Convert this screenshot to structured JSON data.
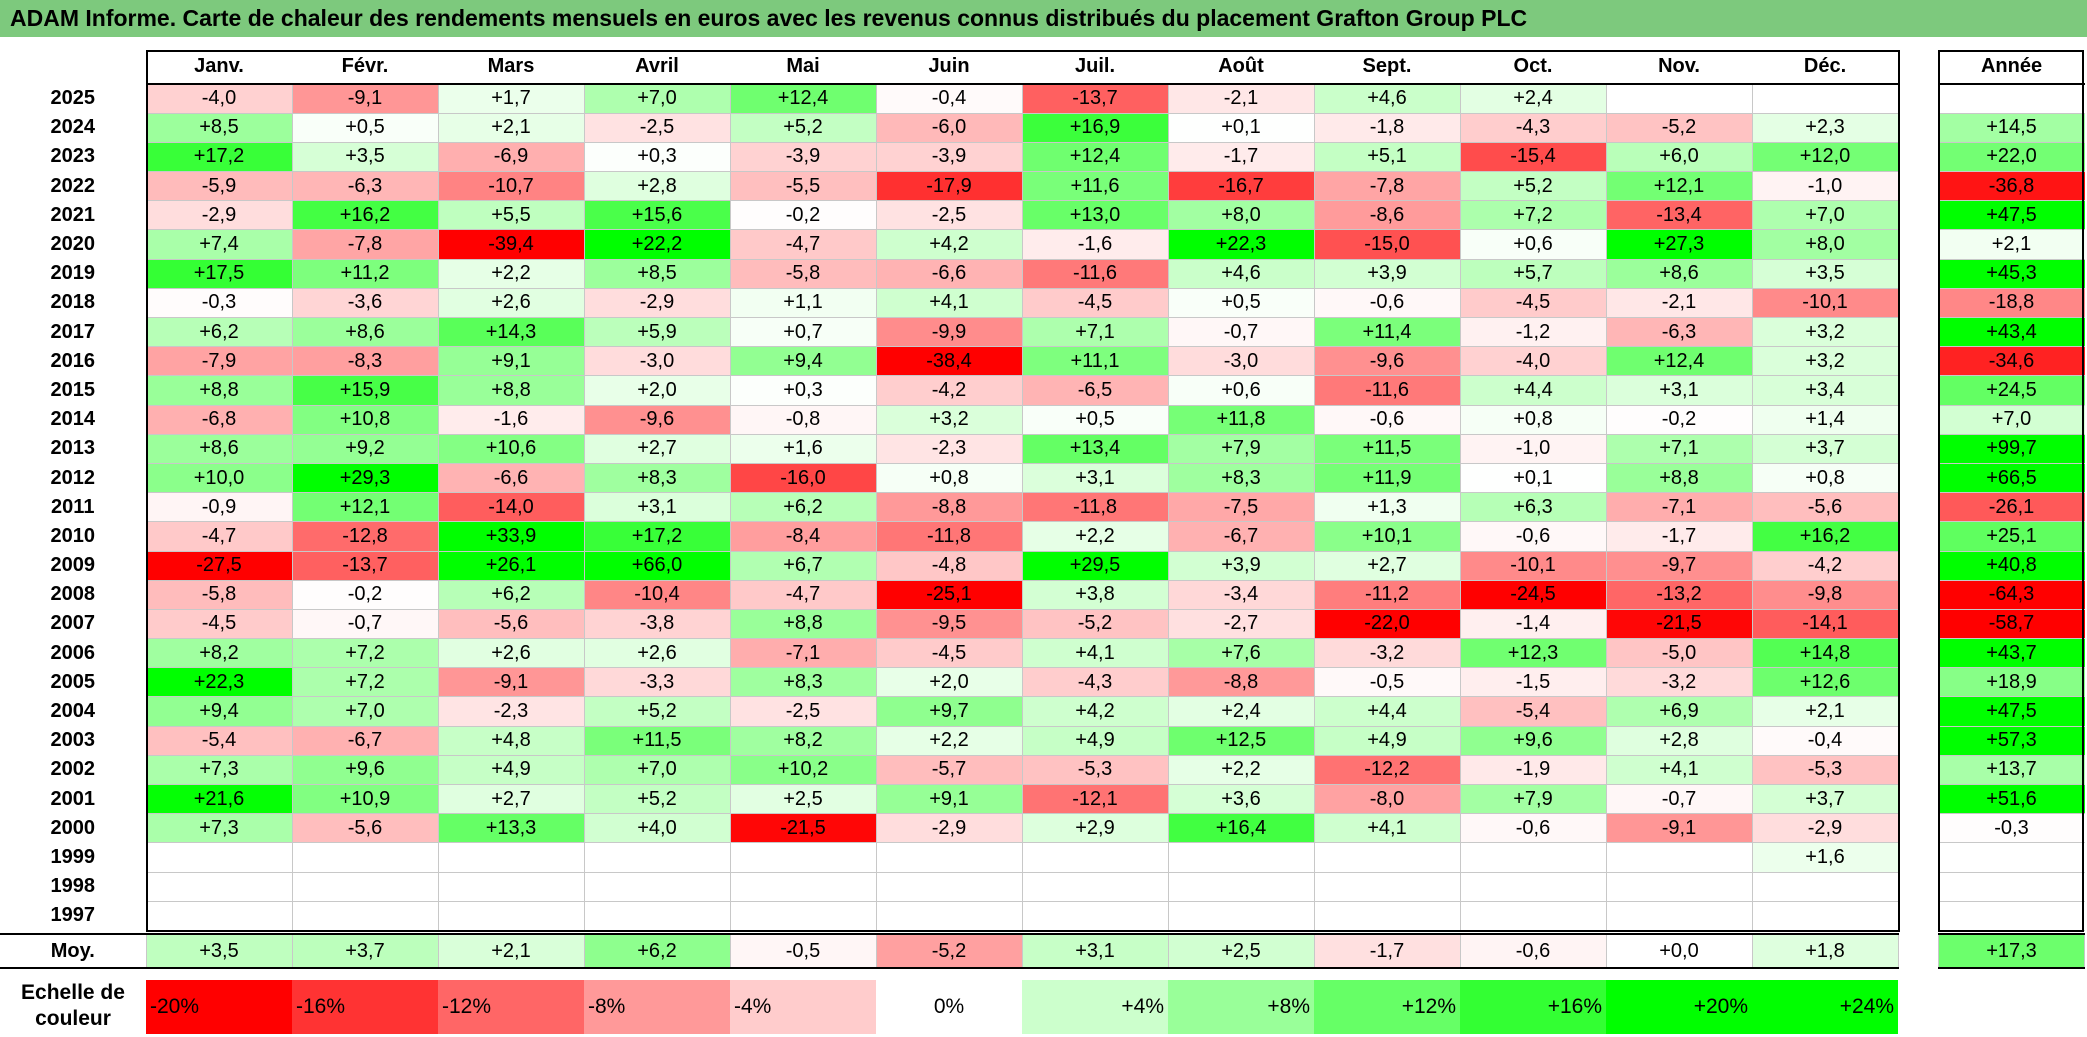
{
  "title": "ADAM Informe. Carte de chaleur des rendements mensuels en euros avec les revenus connus distribués du placement Grafton Group PLC",
  "chart_data": {
    "type": "heatmap",
    "title": "ADAM Informe. Carte de chaleur des rendements mensuels en euros avec les revenus connus distribués du placement Grafton Group PLC",
    "columns": [
      "Janv.",
      "Févr.",
      "Mars",
      "Avril",
      "Mai",
      "Juin",
      "Juil.",
      "Août",
      "Sept.",
      "Oct.",
      "Nov.",
      "Déc."
    ],
    "year_column_label": "Année",
    "rows": [
      {
        "year": "2025",
        "values": [
          "-4,0",
          "-9,1",
          "+1,7",
          "+7,0",
          "+12,4",
          "-0,4",
          "-13,7",
          "-2,1",
          "+4,6",
          "+2,4",
          "",
          ""
        ],
        "annual": ""
      },
      {
        "year": "2024",
        "values": [
          "+8,5",
          "+0,5",
          "+2,1",
          "-2,5",
          "+5,2",
          "-6,0",
          "+16,9",
          "+0,1",
          "-1,8",
          "-4,3",
          "-5,2",
          "+2,3"
        ],
        "annual": "+14,5"
      },
      {
        "year": "2023",
        "values": [
          "+17,2",
          "+3,5",
          "-6,9",
          "+0,3",
          "-3,9",
          "-3,9",
          "+12,4",
          "-1,7",
          "+5,1",
          "-15,4",
          "+6,0",
          "+12,0"
        ],
        "annual": "+22,0"
      },
      {
        "year": "2022",
        "values": [
          "-5,9",
          "-6,3",
          "-10,7",
          "+2,8",
          "-5,5",
          "-17,9",
          "+11,6",
          "-16,7",
          "-7,8",
          "+5,2",
          "+12,1",
          "-1,0"
        ],
        "annual": "-36,8"
      },
      {
        "year": "2021",
        "values": [
          "-2,9",
          "+16,2",
          "+5,5",
          "+15,6",
          "-0,2",
          "-2,5",
          "+13,0",
          "+8,0",
          "-8,6",
          "+7,2",
          "-13,4",
          "+7,0"
        ],
        "annual": "+47,5"
      },
      {
        "year": "2020",
        "values": [
          "+7,4",
          "-7,8",
          "-39,4",
          "+22,2",
          "-4,7",
          "+4,2",
          "-1,6",
          "+22,3",
          "-15,0",
          "+0,6",
          "+27,3",
          "+8,0"
        ],
        "annual": "+2,1"
      },
      {
        "year": "2019",
        "values": [
          "+17,5",
          "+11,2",
          "+2,2",
          "+8,5",
          "-5,8",
          "-6,6",
          "-11,6",
          "+4,6",
          "+3,9",
          "+5,7",
          "+8,6",
          "+3,5"
        ],
        "annual": "+45,3"
      },
      {
        "year": "2018",
        "values": [
          "-0,3",
          "-3,6",
          "+2,6",
          "-2,9",
          "+1,1",
          "+4,1",
          "-4,5",
          "+0,5",
          "-0,6",
          "-4,5",
          "-2,1",
          "-10,1"
        ],
        "annual": "-18,8"
      },
      {
        "year": "2017",
        "values": [
          "+6,2",
          "+8,6",
          "+14,3",
          "+5,9",
          "+0,7",
          "-9,9",
          "+7,1",
          "-0,7",
          "+11,4",
          "-1,2",
          "-6,3",
          "+3,2"
        ],
        "annual": "+43,4"
      },
      {
        "year": "2016",
        "values": [
          "-7,9",
          "-8,3",
          "+9,1",
          "-3,0",
          "+9,4",
          "-38,4",
          "+11,1",
          "-3,0",
          "-9,6",
          "-4,0",
          "+12,4",
          "+3,2"
        ],
        "annual": "-34,6"
      },
      {
        "year": "2015",
        "values": [
          "+8,8",
          "+15,9",
          "+8,8",
          "+2,0",
          "+0,3",
          "-4,2",
          "-6,5",
          "+0,6",
          "-11,6",
          "+4,4",
          "+3,1",
          "+3,4"
        ],
        "annual": "+24,5"
      },
      {
        "year": "2014",
        "values": [
          "-6,8",
          "+10,8",
          "-1,6",
          "-9,6",
          "-0,8",
          "+3,2",
          "+0,5",
          "+11,8",
          "-0,6",
          "+0,8",
          "-0,2",
          "+1,4"
        ],
        "annual": "+7,0"
      },
      {
        "year": "2013",
        "values": [
          "+8,6",
          "+9,2",
          "+10,6",
          "+2,7",
          "+1,6",
          "-2,3",
          "+13,4",
          "+7,9",
          "+11,5",
          "-1,0",
          "+7,1",
          "+3,7"
        ],
        "annual": "+99,7"
      },
      {
        "year": "2012",
        "values": [
          "+10,0",
          "+29,3",
          "-6,6",
          "+8,3",
          "-16,0",
          "+0,8",
          "+3,1",
          "+8,3",
          "+11,9",
          "+0,1",
          "+8,8",
          "+0,8"
        ],
        "annual": "+66,5"
      },
      {
        "year": "2011",
        "values": [
          "-0,9",
          "+12,1",
          "-14,0",
          "+3,1",
          "+6,2",
          "-8,8",
          "-11,8",
          "-7,5",
          "+1,3",
          "+6,3",
          "-7,1",
          "-5,6"
        ],
        "annual": "-26,1"
      },
      {
        "year": "2010",
        "values": [
          "-4,7",
          "-12,8",
          "+33,9",
          "+17,2",
          "-8,4",
          "-11,8",
          "+2,2",
          "-6,7",
          "+10,1",
          "-0,6",
          "-1,7",
          "+16,2"
        ],
        "annual": "+25,1"
      },
      {
        "year": "2009",
        "values": [
          "-27,5",
          "-13,7",
          "+26,1",
          "+66,0",
          "+6,7",
          "-4,8",
          "+29,5",
          "+3,9",
          "+2,7",
          "-10,1",
          "-9,7",
          "-4,2"
        ],
        "annual": "+40,8"
      },
      {
        "year": "2008",
        "values": [
          "-5,8",
          "-0,2",
          "+6,2",
          "-10,4",
          "-4,7",
          "-25,1",
          "+3,8",
          "-3,4",
          "-11,2",
          "-24,5",
          "-13,2",
          "-9,8"
        ],
        "annual": "-64,3"
      },
      {
        "year": "2007",
        "values": [
          "-4,5",
          "-0,7",
          "-5,6",
          "-3,8",
          "+8,8",
          "-9,5",
          "-5,2",
          "-2,7",
          "-22,0",
          "-1,4",
          "-21,5",
          "-14,1"
        ],
        "annual": "-58,7"
      },
      {
        "year": "2006",
        "values": [
          "+8,2",
          "+7,2",
          "+2,6",
          "+2,6",
          "-7,1",
          "-4,5",
          "+4,1",
          "+7,6",
          "-3,2",
          "+12,3",
          "-5,0",
          "+14,8"
        ],
        "annual": "+43,7"
      },
      {
        "year": "2005",
        "values": [
          "+22,3",
          "+7,2",
          "-9,1",
          "-3,3",
          "+8,3",
          "+2,0",
          "-4,3",
          "-8,8",
          "-0,5",
          "-1,5",
          "-3,2",
          "+12,6"
        ],
        "annual": "+18,9"
      },
      {
        "year": "2004",
        "values": [
          "+9,4",
          "+7,0",
          "-2,3",
          "+5,2",
          "-2,5",
          "+9,7",
          "+4,2",
          "+2,4",
          "+4,4",
          "-5,4",
          "+6,9",
          "+2,1"
        ],
        "annual": "+47,5"
      },
      {
        "year": "2003",
        "values": [
          "-5,4",
          "-6,7",
          "+4,8",
          "+11,5",
          "+8,2",
          "+2,2",
          "+4,9",
          "+12,5",
          "+4,9",
          "+9,6",
          "+2,8",
          "-0,4"
        ],
        "annual": "+57,3"
      },
      {
        "year": "2002",
        "values": [
          "+7,3",
          "+9,6",
          "+4,9",
          "+7,0",
          "+10,2",
          "-5,7",
          "-5,3",
          "+2,2",
          "-12,2",
          "-1,9",
          "+4,1",
          "-5,3"
        ],
        "annual": "+13,7"
      },
      {
        "year": "2001",
        "values": [
          "+21,6",
          "+10,9",
          "+2,7",
          "+5,2",
          "+2,5",
          "+9,1",
          "-12,1",
          "+3,6",
          "-8,0",
          "+7,9",
          "-0,7",
          "+3,7"
        ],
        "annual": "+51,6"
      },
      {
        "year": "2000",
        "values": [
          "+7,3",
          "-5,6",
          "+13,3",
          "+4,0",
          "-21,5",
          "-2,9",
          "+2,9",
          "+16,4",
          "+4,1",
          "-0,6",
          "-9,1",
          "-2,9"
        ],
        "annual": "-0,3"
      },
      {
        "year": "1999",
        "values": [
          "",
          "",
          "",
          "",
          "",
          "",
          "",
          "",
          "",
          "",
          "",
          "+1,6"
        ],
        "annual": ""
      },
      {
        "year": "1998",
        "values": [
          "",
          "",
          "",
          "",
          "",
          "",
          "",
          "",
          "",
          "",
          "",
          ""
        ],
        "annual": ""
      },
      {
        "year": "1997",
        "values": [
          "",
          "",
          "",
          "",
          "",
          "",
          "",
          "",
          "",
          "",
          "",
          ""
        ],
        "annual": ""
      }
    ],
    "average": {
      "label": "Moy.",
      "values": [
        "+3,5",
        "+3,7",
        "+2,1",
        "+6,2",
        "-0,5",
        "-5,2",
        "+3,1",
        "+2,5",
        "-1,7",
        "-0,6",
        "+0,0",
        "+1,8"
      ],
      "annual": "+17,3"
    },
    "color_scale": {
      "label": "Echelle de\ncouleur",
      "steps": [
        "-20%",
        "-16%",
        "-12%",
        "-8%",
        "-4%",
        "0%",
        "+4%",
        "+8%",
        "+12%",
        "+16%",
        "+20%",
        "+24%"
      ],
      "negative_color": "#ff0000",
      "neutral_color": "#ffffff",
      "positive_color": "#00ff00"
    }
  }
}
